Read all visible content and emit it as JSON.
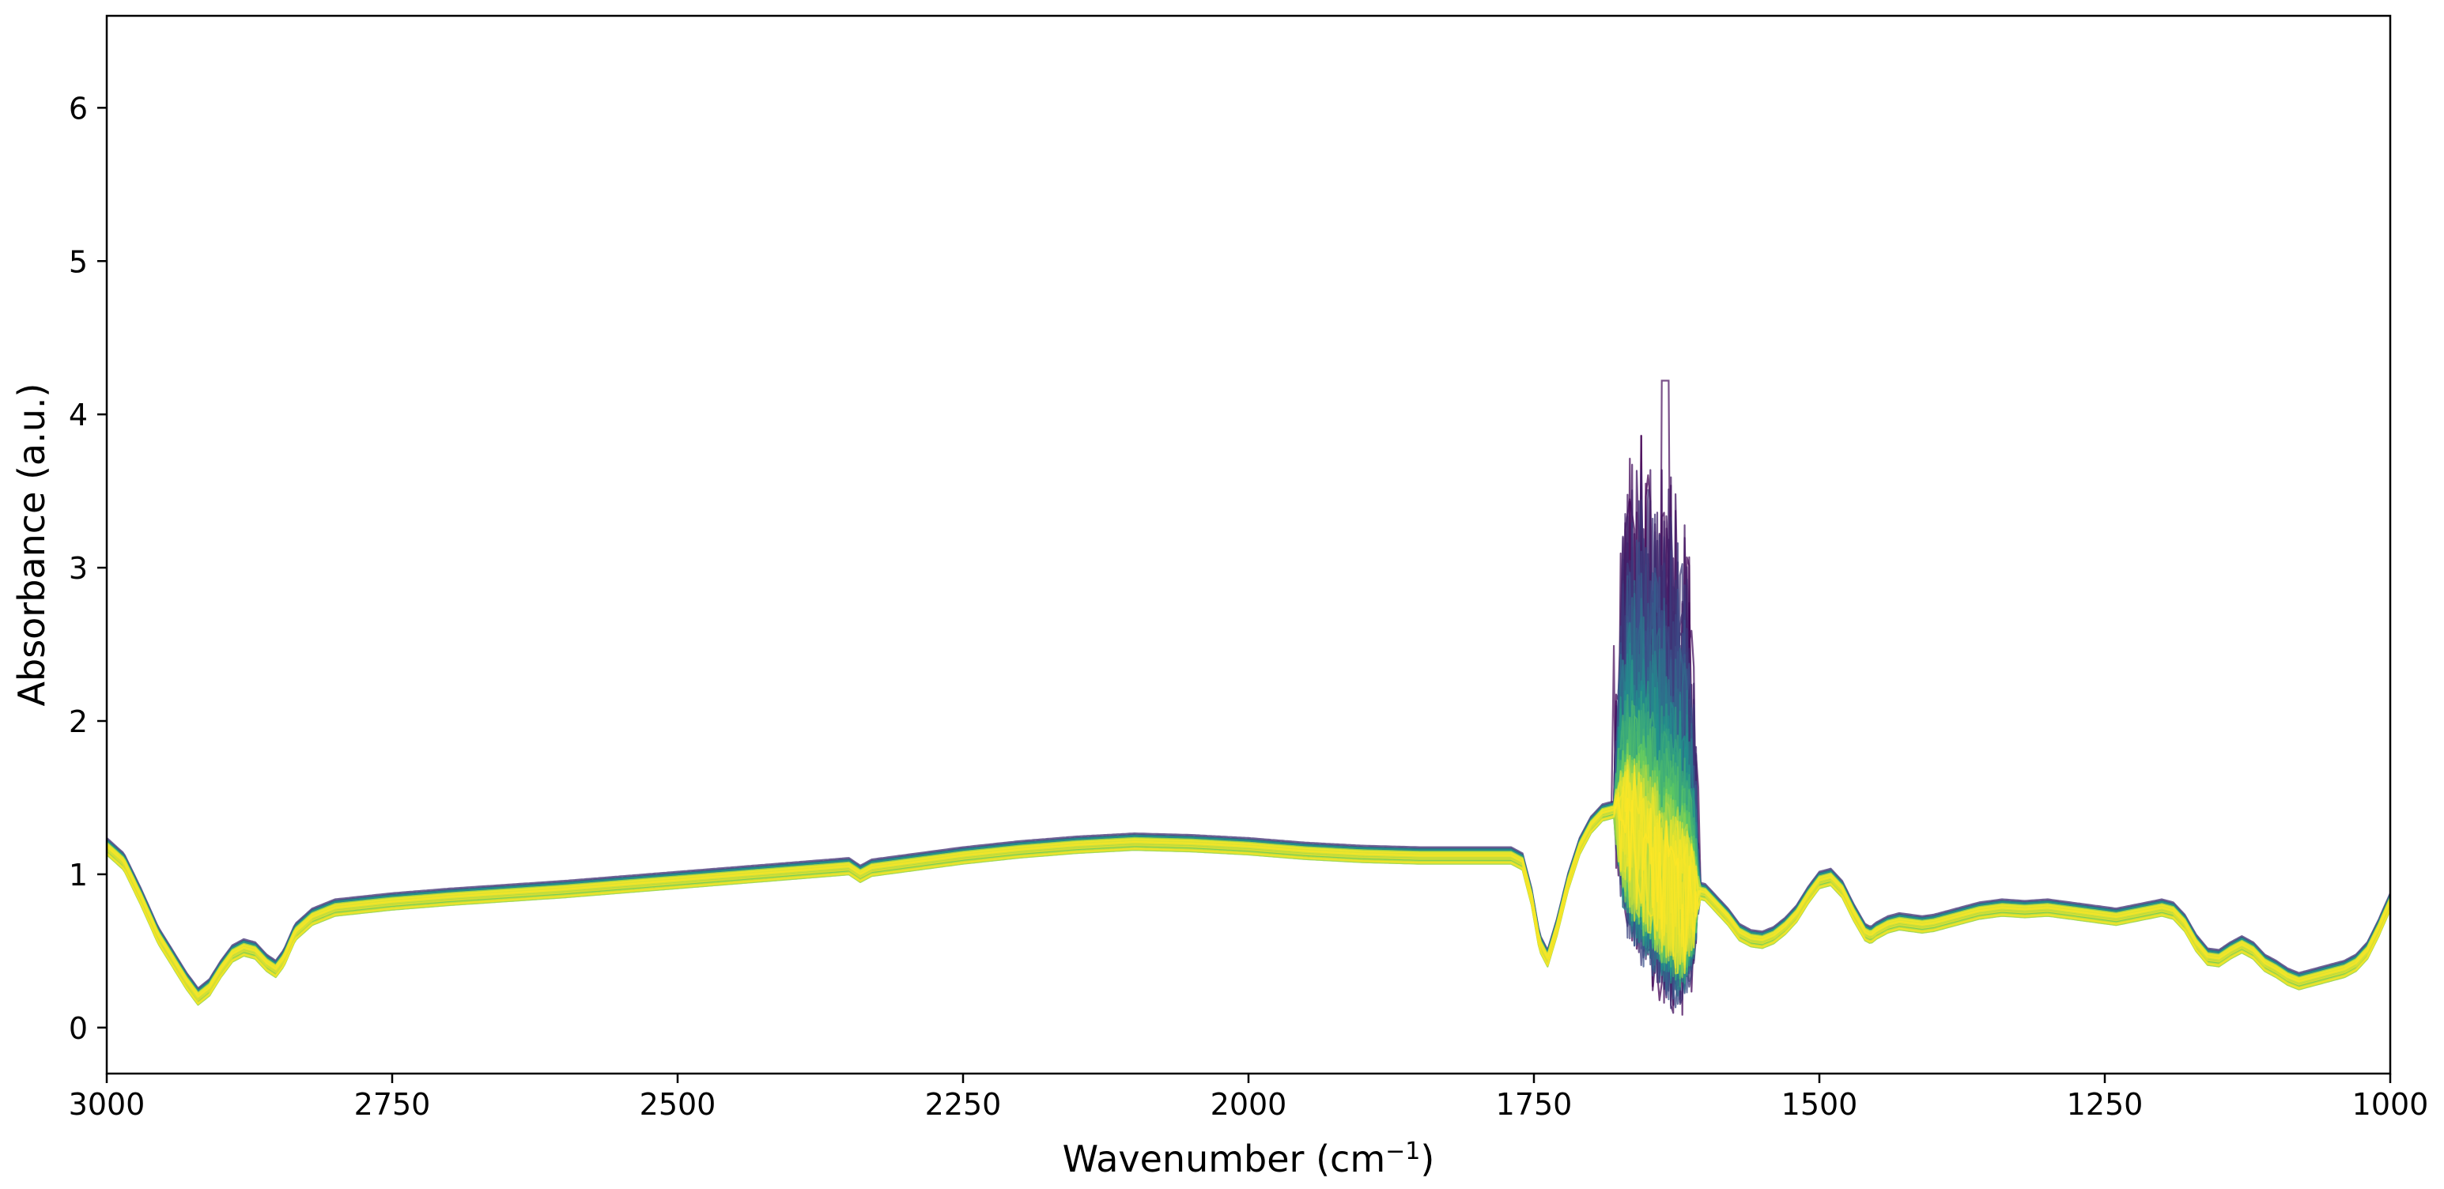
{
  "chart_data": {
    "type": "line",
    "title": "",
    "xlabel": "Wavenumber (cm",
    "xlabel_sup": "−1",
    "xlabel_close": ")",
    "ylabel": "Absorbance (a.u.)",
    "xlim": [
      3000,
      1000
    ],
    "ylim": [
      -0.3,
      6.6
    ],
    "x_ticks": [
      3000,
      2750,
      2500,
      2250,
      2000,
      1750,
      1500,
      1250,
      1000
    ],
    "x_tick_labels": [
      "3000",
      "2750",
      "2500",
      "2250",
      "2000",
      "1750",
      "1500",
      "1250",
      "1000"
    ],
    "y_ticks": [
      0,
      1,
      2,
      3,
      4,
      5,
      6
    ],
    "y_tick_labels": [
      "0",
      "1",
      "2",
      "3",
      "4",
      "5",
      "6"
    ],
    "grid": false,
    "legend": "none",
    "colormap": "viridis",
    "colormap_stops": [
      "#440154",
      "#3b528b",
      "#21918c",
      "#5ec962",
      "#fde725"
    ],
    "series_count": 120,
    "baseline_spectrum": {
      "x": [
        3000,
        2985,
        2970,
        2955,
        2940,
        2930,
        2920,
        2910,
        2900,
        2890,
        2880,
        2870,
        2860,
        2852,
        2845,
        2835,
        2820,
        2800,
        2750,
        2700,
        2600,
        2500,
        2400,
        2350,
        2340,
        2330,
        2300,
        2250,
        2200,
        2150,
        2100,
        2050,
        2000,
        1950,
        1900,
        1850,
        1800,
        1770,
        1760,
        1752,
        1745,
        1738,
        1730,
        1720,
        1710,
        1700,
        1690,
        1680,
        1670,
        1660,
        1650,
        1640,
        1630,
        1620,
        1610,
        1600,
        1590,
        1580,
        1570,
        1560,
        1550,
        1540,
        1530,
        1520,
        1510,
        1500,
        1490,
        1480,
        1470,
        1460,
        1455,
        1450,
        1440,
        1430,
        1420,
        1410,
        1400,
        1380,
        1360,
        1340,
        1320,
        1300,
        1280,
        1260,
        1240,
        1220,
        1200,
        1190,
        1180,
        1170,
        1160,
        1150,
        1140,
        1130,
        1120,
        1110,
        1100,
        1090,
        1080,
        1070,
        1060,
        1050,
        1040,
        1030,
        1020,
        1010,
        1000
      ],
      "y": [
        1.18,
        1.08,
        0.85,
        0.6,
        0.42,
        0.3,
        0.2,
        0.26,
        0.38,
        0.48,
        0.52,
        0.5,
        0.42,
        0.38,
        0.45,
        0.62,
        0.72,
        0.78,
        0.82,
        0.85,
        0.9,
        0.96,
        1.02,
        1.05,
        1.0,
        1.04,
        1.07,
        1.12,
        1.16,
        1.19,
        1.21,
        1.2,
        1.18,
        1.15,
        1.13,
        1.12,
        1.12,
        1.12,
        1.08,
        0.85,
        0.55,
        0.45,
        0.65,
        0.95,
        1.18,
        1.32,
        1.4,
        1.42,
        1.38,
        1.3,
        1.2,
        1.1,
        1.0,
        0.95,
        0.9,
        0.88,
        0.8,
        0.72,
        0.62,
        0.58,
        0.57,
        0.6,
        0.66,
        0.74,
        0.86,
        0.96,
        0.98,
        0.9,
        0.75,
        0.62,
        0.6,
        0.63,
        0.67,
        0.69,
        0.68,
        0.67,
        0.68,
        0.72,
        0.76,
        0.78,
        0.77,
        0.78,
        0.76,
        0.74,
        0.72,
        0.75,
        0.78,
        0.76,
        0.68,
        0.55,
        0.46,
        0.45,
        0.5,
        0.54,
        0.5,
        0.42,
        0.38,
        0.33,
        0.3,
        0.32,
        0.34,
        0.36,
        0.38,
        0.42,
        0.5,
        0.65,
        0.82
      ]
    },
    "spread_band": {
      "x_range": [
        1680,
        1605
      ],
      "min_value": 0.08,
      "max_value": 4.22,
      "peak_x": 1635
    }
  }
}
